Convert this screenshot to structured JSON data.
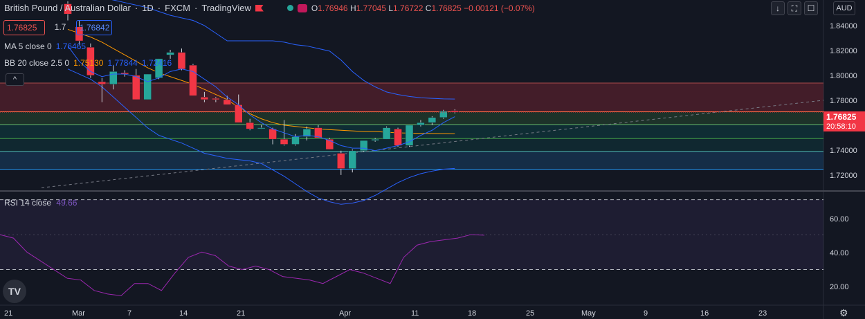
{
  "header": {
    "symbol": "British Pound / Australian Dollar",
    "sep1": "·",
    "interval": "1D",
    "sep2": "·",
    "source": "FXCM",
    "sep3": "·",
    "platform": "TradingView",
    "ohlc": {
      "o_label": "O",
      "o": "1.76946",
      "h_label": "H",
      "h": "1.77045",
      "l_label": "L",
      "l": "1.76722",
      "c_label": "C",
      "c": "1.76825",
      "change": "−0.00121 (−0.07%)"
    }
  },
  "trade": {
    "sell": "1.76825",
    "spread": "1.7",
    "buy": "1.76842"
  },
  "indicators": {
    "ma": {
      "label": "MA 5 close 0",
      "value": "1.76465"
    },
    "bb": {
      "label": "BB 20 close 2.5 0",
      "basis": "1.75130",
      "upper": "1.77844",
      "lower": "1.72416"
    },
    "rsi": {
      "label": "RSI 14 close",
      "value": "49.66"
    }
  },
  "controls": {
    "collapse": "^",
    "arrow_down": "↓",
    "fullscreen": "⛶",
    "close": "☐",
    "currency": "AUD"
  },
  "price_axis": {
    "labels": [
      "1.84000",
      "1.82000",
      "1.80000",
      "1.78000",
      "1.74000",
      "1.72000"
    ],
    "last_price": "1.76825",
    "countdown": "20:58:10"
  },
  "rsi_axis": {
    "labels": [
      "60.00",
      "40.00",
      "20.00"
    ]
  },
  "time_axis": {
    "labels": [
      "21",
      "Mar",
      "7",
      "14",
      "21",
      "Apr",
      "11",
      "18",
      "25",
      "May",
      "9",
      "16",
      "23"
    ]
  },
  "colors": {
    "up": "#26a69a",
    "down": "#f23645",
    "bg": "#131722",
    "ma": "#2962ff",
    "bb": "#ff9800",
    "rsi": "#9c27b0"
  },
  "chart_data": {
    "type": "candlestick",
    "candles": [
      {
        "o": 1.853,
        "h": 1.855,
        "l": 1.84,
        "c": 1.845
      },
      {
        "o": 1.835,
        "h": 1.84,
        "l": 1.821,
        "c": 1.824
      },
      {
        "o": 1.819,
        "h": 1.822,
        "l": 1.795,
        "c": 1.797
      },
      {
        "o": 1.792,
        "h": 1.795,
        "l": 1.776,
        "c": 1.79
      },
      {
        "o": 1.79,
        "h": 1.805,
        "l": 1.786,
        "c": 1.8
      },
      {
        "o": 1.799,
        "h": 1.801,
        "l": 1.796,
        "c": 1.798
      },
      {
        "o": 1.797,
        "h": 1.802,
        "l": 1.778,
        "c": 1.778
      },
      {
        "o": 1.778,
        "h": 1.798,
        "l": 1.778,
        "c": 1.798
      },
      {
        "o": 1.795,
        "h": 1.81,
        "l": 1.794,
        "c": 1.81
      },
      {
        "o": 1.813,
        "h": 1.817,
        "l": 1.81,
        "c": 1.815
      },
      {
        "o": 1.815,
        "h": 1.818,
        "l": 1.801,
        "c": 1.802
      },
      {
        "o": 1.805,
        "h": 1.806,
        "l": 1.781,
        "c": 1.781
      },
      {
        "o": 1.78,
        "h": 1.784,
        "l": 1.776,
        "c": 1.778
      },
      {
        "o": 1.779,
        "h": 1.78,
        "l": 1.776,
        "c": 1.778
      },
      {
        "o": 1.778,
        "h": 1.781,
        "l": 1.774,
        "c": 1.774
      },
      {
        "o": 1.774,
        "h": 1.782,
        "l": 1.76,
        "c": 1.76
      },
      {
        "o": 1.76,
        "h": 1.763,
        "l": 1.754,
        "c": 1.755
      },
      {
        "o": 1.756,
        "h": 1.758,
        "l": 1.755,
        "c": 1.756
      },
      {
        "o": 1.755,
        "h": 1.756,
        "l": 1.743,
        "c": 1.747
      },
      {
        "o": 1.747,
        "h": 1.762,
        "l": 1.742,
        "c": 1.743
      },
      {
        "o": 1.743,
        "h": 1.751,
        "l": 1.742,
        "c": 1.749
      },
      {
        "o": 1.749,
        "h": 1.757,
        "l": 1.746,
        "c": 1.755
      },
      {
        "o": 1.756,
        "h": 1.758,
        "l": 1.748,
        "c": 1.748
      },
      {
        "o": 1.747,
        "h": 1.748,
        "l": 1.739,
        "c": 1.739
      },
      {
        "o": 1.736,
        "h": 1.738,
        "l": 1.719,
        "c": 1.724
      },
      {
        "o": 1.724,
        "h": 1.739,
        "l": 1.721,
        "c": 1.738
      },
      {
        "o": 1.738,
        "h": 1.746,
        "l": 1.737,
        "c": 1.746
      },
      {
        "o": 1.746,
        "h": 1.748,
        "l": 1.745,
        "c": 1.747
      },
      {
        "o": 1.747,
        "h": 1.757,
        "l": 1.747,
        "c": 1.756
      },
      {
        "o": 1.755,
        "h": 1.756,
        "l": 1.741,
        "c": 1.742
      },
      {
        "o": 1.742,
        "h": 1.758,
        "l": 1.741,
        "c": 1.758
      },
      {
        "o": 1.758,
        "h": 1.762,
        "l": 1.757,
        "c": 1.76
      },
      {
        "o": 1.76,
        "h": 1.765,
        "l": 1.758,
        "c": 1.764
      },
      {
        "o": 1.764,
        "h": 1.77,
        "l": 1.763,
        "c": 1.769
      },
      {
        "o": 1.76946,
        "h": 1.77045,
        "l": 1.76722,
        "c": 1.76825
      }
    ],
    "ma5": [
      1.82,
      1.808,
      1.8,
      1.796,
      1.798,
      1.798,
      1.796,
      1.792,
      1.795,
      1.8,
      1.802,
      1.8,
      1.794,
      1.788,
      1.78,
      1.774,
      1.766,
      1.76,
      1.755,
      1.752,
      1.749,
      1.75,
      1.749,
      1.746,
      1.742,
      1.74,
      1.74,
      1.738,
      1.74,
      1.742,
      1.745,
      1.75,
      1.754,
      1.76,
      1.76465
    ],
    "bb_upper": [
      1.864,
      1.862,
      1.86,
      1.858,
      1.856,
      1.854,
      1.852,
      1.85,
      1.847,
      1.844,
      1.842,
      1.84,
      1.836,
      1.83,
      1.824,
      1.824,
      1.824,
      1.824,
      1.824,
      1.823,
      1.821,
      1.82,
      1.818,
      1.816,
      1.809,
      1.8,
      1.793,
      1.788,
      1.784,
      1.782,
      1.7805,
      1.7795,
      1.779,
      1.7786,
      1.77844
    ],
    "bb_basis": [
      1.833,
      1.83,
      1.827,
      1.823,
      1.818,
      1.813,
      1.808,
      1.803,
      1.799,
      1.796,
      1.793,
      1.79,
      1.786,
      1.782,
      1.778,
      1.772,
      1.767,
      1.763,
      1.76,
      1.758,
      1.757,
      1.756,
      1.755,
      1.7545,
      1.754,
      1.7535,
      1.753,
      1.753,
      1.7525,
      1.752,
      1.7518,
      1.7516,
      1.7515,
      1.7514,
      1.7513
    ],
    "bb_lower": [
      1.802,
      1.798,
      1.794,
      1.788,
      1.78,
      1.772,
      1.764,
      1.756,
      1.75,
      1.747,
      1.744,
      1.74,
      1.736,
      1.734,
      1.732,
      1.731,
      1.73,
      1.728,
      1.723,
      1.718,
      1.712,
      1.706,
      1.701,
      1.698,
      1.696,
      1.697,
      1.699,
      1.703,
      1.708,
      1.713,
      1.717,
      1.72,
      1.722,
      1.7235,
      1.72416
    ],
    "rsi": [
      50,
      48,
      40,
      35,
      30,
      25,
      24,
      18,
      16,
      15,
      22,
      22,
      18,
      28,
      37,
      40,
      38,
      32,
      30,
      32,
      30,
      26,
      25,
      24,
      22,
      26,
      30,
      28,
      25,
      22,
      32,
      36,
      38,
      38,
      42
    ],
    "rsi_tail": [
      37,
      44,
      46,
      47,
      48,
      50,
      49.66
    ],
    "levels": [
      1.791,
      1.7685,
      1.7585,
      1.7475,
      1.7375,
      1.7235
    ],
    "rsi_bands": [
      70,
      30
    ],
    "ylim": [
      1.707,
      1.856
    ],
    "rsi_ylim": [
      10,
      75
    ]
  }
}
